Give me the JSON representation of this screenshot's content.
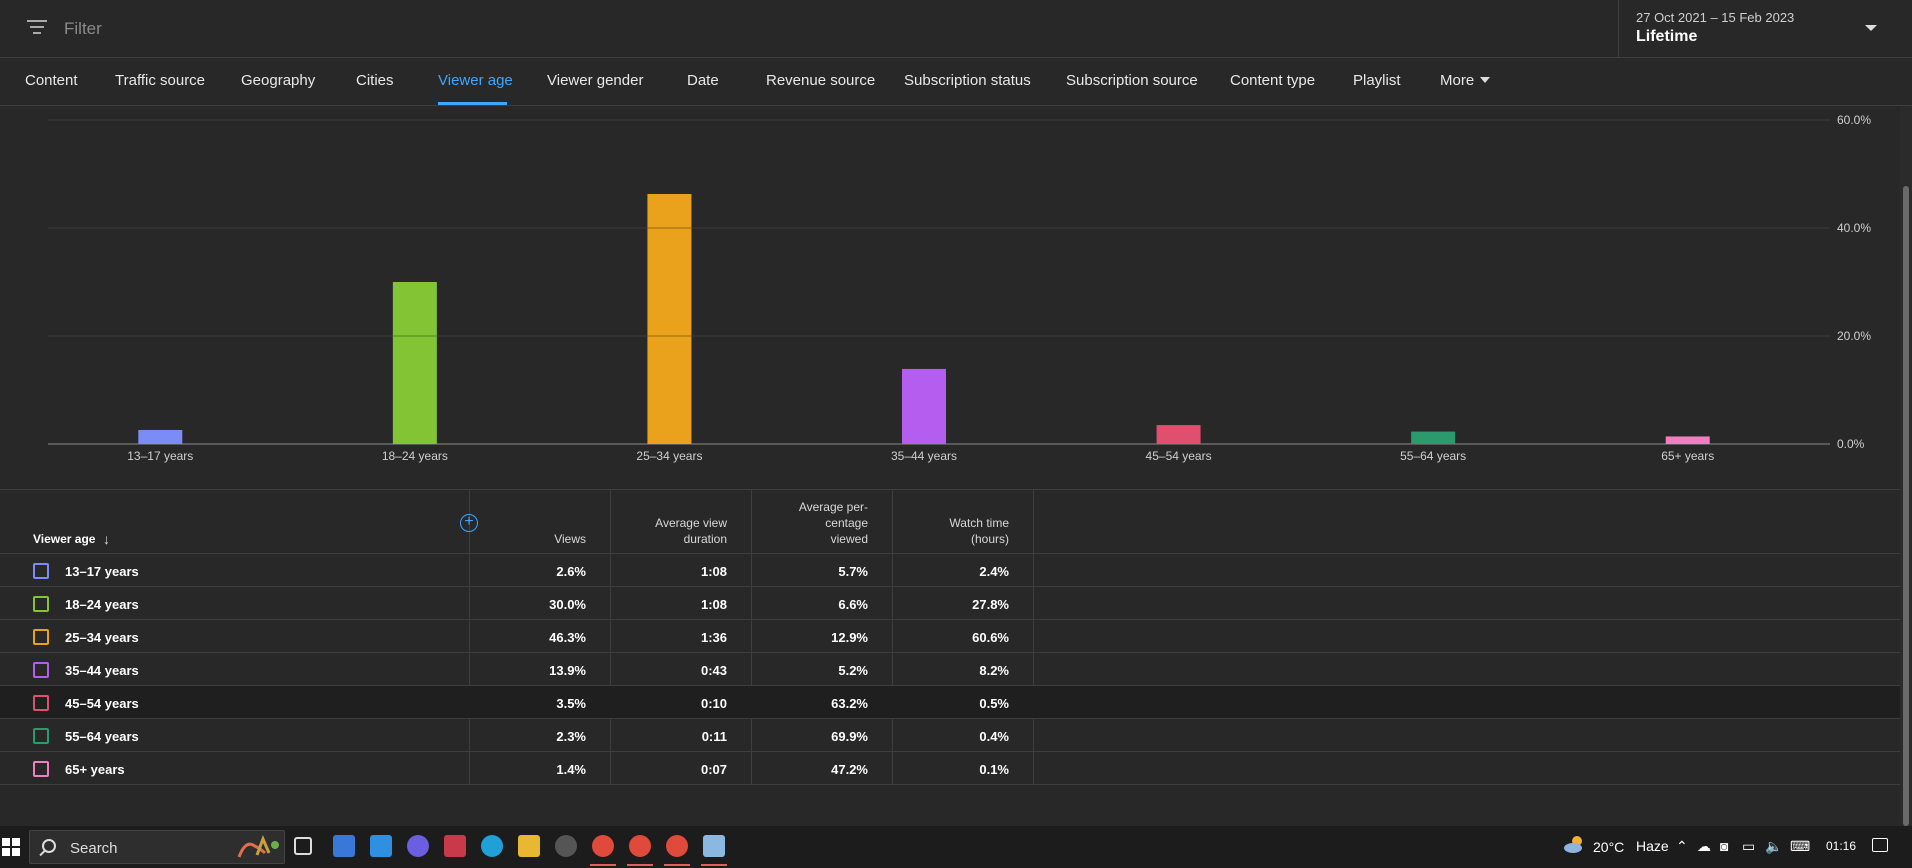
{
  "filter": {
    "placeholder": "Filter"
  },
  "date_picker": {
    "range": "27 Oct 2021 – 15 Feb 2023",
    "label": "Lifetime"
  },
  "tabs": [
    {
      "label": "Content",
      "active": false
    },
    {
      "label": "Traffic source",
      "active": false
    },
    {
      "label": "Geography",
      "active": false
    },
    {
      "label": "Cities",
      "active": false
    },
    {
      "label": "Viewer age",
      "active": true
    },
    {
      "label": "Viewer gender",
      "active": false
    },
    {
      "label": "Date",
      "active": false
    },
    {
      "label": "Revenue source",
      "active": false
    },
    {
      "label": "Subscription status",
      "active": false
    },
    {
      "label": "Subscription source",
      "active": false
    },
    {
      "label": "Content type",
      "active": false
    },
    {
      "label": "Playlist",
      "active": false
    },
    {
      "label": "More",
      "active": false
    }
  ],
  "chart_data": {
    "type": "bar",
    "categories": [
      "13–17 years",
      "18–24 years",
      "25–34 years",
      "35–44 years",
      "45–54 years",
      "55–64 years",
      "65+ years"
    ],
    "values": [
      2.6,
      30.0,
      46.3,
      13.9,
      3.5,
      2.3,
      1.4
    ],
    "colors": [
      "#7b8cf7",
      "#82c434",
      "#eaa21c",
      "#b45ef0",
      "#e0506e",
      "#2b9b6e",
      "#f07ec0"
    ],
    "ylim": [
      0,
      60
    ],
    "yticks": [
      "0.0%",
      "20.0%",
      "40.0%",
      "60.0%"
    ],
    "grid": true,
    "axis_side": "right"
  },
  "table": {
    "headers": {
      "dimension": "Viewer age",
      "views": "Views",
      "avg_view_duration": [
        "Average view",
        "duration"
      ],
      "avg_pct_viewed": [
        "Average per-",
        "centage",
        "viewed"
      ],
      "watch_time": [
        "Watch time",
        "(hours)"
      ]
    },
    "rows": [
      {
        "label": "13–17 years",
        "color": "#7b8cf7",
        "views": "2.6%",
        "avg_view_duration": "1:08",
        "avg_pct_viewed": "5.7%",
        "watch_time": "2.4%"
      },
      {
        "label": "18–24 years",
        "color": "#82c434",
        "views": "30.0%",
        "avg_view_duration": "1:08",
        "avg_pct_viewed": "6.6%",
        "watch_time": "27.8%"
      },
      {
        "label": "25–34 years",
        "color": "#eaa21c",
        "views": "46.3%",
        "avg_view_duration": "1:36",
        "avg_pct_viewed": "12.9%",
        "watch_time": "60.6%"
      },
      {
        "label": "35–44 years",
        "color": "#b45ef0",
        "views": "13.9%",
        "avg_view_duration": "0:43",
        "avg_pct_viewed": "5.2%",
        "watch_time": "8.2%"
      },
      {
        "label": "45–54 years",
        "color": "#e0506e",
        "views": "3.5%",
        "avg_view_duration": "0:10",
        "avg_pct_viewed": "63.2%",
        "watch_time": "0.5%"
      },
      {
        "label": "55–64 years",
        "color": "#2b9b6e",
        "views": "2.3%",
        "avg_view_duration": "0:11",
        "avg_pct_viewed": "69.9%",
        "watch_time": "0.4%"
      },
      {
        "label": "65+ years",
        "color": "#f07ec0",
        "views": "1.4%",
        "avg_view_duration": "0:07",
        "avg_pct_viewed": "47.2%",
        "watch_time": "0.1%"
      }
    ]
  },
  "taskbar": {
    "search_label": "Search",
    "weather_temp": "20°C",
    "weather_cond": "Haze",
    "time": "01:16"
  }
}
